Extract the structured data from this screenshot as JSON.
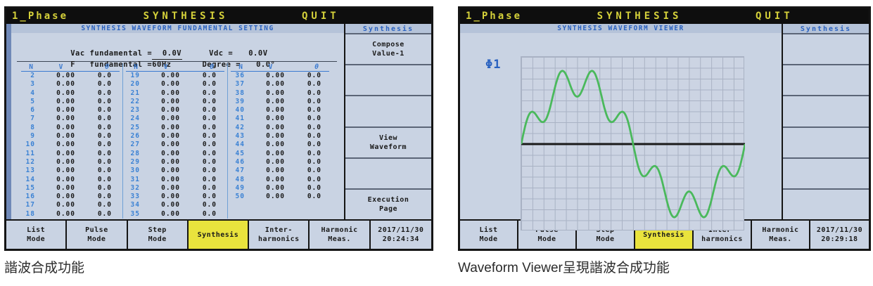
{
  "colors": {
    "screen_bg": "#c9d3e3",
    "header_bg": "#0e0e0e",
    "header_text": "#d5d13a",
    "band_bg": "#b5c3d9",
    "band_text": "#2a62c0",
    "accent_blue": "#3b7ad0",
    "active_tab_yellow": "#e9e33d",
    "grid_line": "#a9b2c4",
    "waveform_green": "#4ab95c"
  },
  "footer_tabs": [
    [
      "List",
      "Mode"
    ],
    [
      "Pulse",
      "Mode"
    ],
    [
      "Step",
      "Mode"
    ],
    [
      "Synthesis"
    ],
    [
      "Inter-",
      "harmonics"
    ],
    [
      "Harmonic",
      "Meas."
    ]
  ],
  "active_tab_index": 3,
  "captions": {
    "left": "諧波合成功能",
    "right": "Waveform Viewer呈現諧波合成功能"
  },
  "screen_left": {
    "header": {
      "phase": "1_Phase",
      "title": "SYNTHESIS",
      "quit": "QUIT"
    },
    "panel_title": "SYNTHESIS WAVEFORM FUNDAMENTAL SETTING",
    "settings": {
      "vac_label": "Vac fundamental =",
      "vac_value": "  0.0V",
      "vdc_label": "Vdc =",
      "vdc_value": "0.0V",
      "f_label": "F   fundamental =",
      "f_value": "60Hz",
      "degree_label": "Degree =",
      "degree_value": "0.0°"
    },
    "table": {
      "headers": [
        "N",
        "V",
        "θ"
      ],
      "groups": [
        {
          "rows": [
            [
              2,
              "0.00",
              "0.0"
            ],
            [
              3,
              "0.00",
              "0.0"
            ],
            [
              4,
              "0.00",
              "0.0"
            ],
            [
              5,
              "0.00",
              "0.0"
            ],
            [
              6,
              "0.00",
              "0.0"
            ],
            [
              7,
              "0.00",
              "0.0"
            ],
            [
              8,
              "0.00",
              "0.0"
            ],
            [
              9,
              "0.00",
              "0.0"
            ],
            [
              10,
              "0.00",
              "0.0"
            ],
            [
              11,
              "0.00",
              "0.0"
            ],
            [
              12,
              "0.00",
              "0.0"
            ],
            [
              13,
              "0.00",
              "0.0"
            ],
            [
              14,
              "0.00",
              "0.0"
            ],
            [
              15,
              "0.00",
              "0.0"
            ],
            [
              16,
              "0.00",
              "0.0"
            ],
            [
              17,
              "0.00",
              "0.0"
            ],
            [
              18,
              "0.00",
              "0.0"
            ]
          ]
        },
        {
          "rows": [
            [
              19,
              "0.00",
              "0.0"
            ],
            [
              20,
              "0.00",
              "0.0"
            ],
            [
              21,
              "0.00",
              "0.0"
            ],
            [
              22,
              "0.00",
              "0.0"
            ],
            [
              23,
              "0.00",
              "0.0"
            ],
            [
              24,
              "0.00",
              "0.0"
            ],
            [
              25,
              "0.00",
              "0.0"
            ],
            [
              26,
              "0.00",
              "0.0"
            ],
            [
              27,
              "0.00",
              "0.0"
            ],
            [
              28,
              "0.00",
              "0.0"
            ],
            [
              29,
              "0.00",
              "0.0"
            ],
            [
              30,
              "0.00",
              "0.0"
            ],
            [
              31,
              "0.00",
              "0.0"
            ],
            [
              32,
              "0.00",
              "0.0"
            ],
            [
              33,
              "0.00",
              "0.0"
            ],
            [
              34,
              "0.00",
              "0.0"
            ],
            [
              35,
              "0.00",
              "0.0"
            ]
          ]
        },
        {
          "rows": [
            [
              36,
              "0.00",
              "0.0"
            ],
            [
              37,
              "0.00",
              "0.0"
            ],
            [
              38,
              "0.00",
              "0.0"
            ],
            [
              39,
              "0.00",
              "0.0"
            ],
            [
              40,
              "0.00",
              "0.0"
            ],
            [
              41,
              "0.00",
              "0.0"
            ],
            [
              42,
              "0.00",
              "0.0"
            ],
            [
              43,
              "0.00",
              "0.0"
            ],
            [
              44,
              "0.00",
              "0.0"
            ],
            [
              45,
              "0.00",
              "0.0"
            ],
            [
              46,
              "0.00",
              "0.0"
            ],
            [
              47,
              "0.00",
              "0.0"
            ],
            [
              48,
              "0.00",
              "0.0"
            ],
            [
              49,
              "0.00",
              "0.0"
            ],
            [
              50,
              "0.00",
              "0.0"
            ]
          ]
        }
      ]
    },
    "sidebar": {
      "title": "Synthesis",
      "buttons": [
        [
          "Compose",
          "Value-1"
        ],
        [],
        [],
        [
          "View",
          "Waveform"
        ],
        [],
        [
          "Execution",
          "Page"
        ]
      ]
    },
    "clock": [
      "2017/11/30",
      "20:24:34"
    ]
  },
  "screen_right": {
    "header": {
      "phase": "1_Phase",
      "title": "SYNTHESIS",
      "quit": "QUIT"
    },
    "panel_title": "SYNTHESIS WAVEFORM VIEWER",
    "phase_label": "Φ1",
    "waveform": {
      "color": "#4ab95c",
      "zero_line_color": "#1a1a1a",
      "cycles": 1,
      "harmonics": [
        {
          "n": 1,
          "amp": 1.0
        },
        {
          "n": 7,
          "amp": 0.25
        }
      ]
    },
    "sidebar": {
      "title": "Synthesis",
      "buttons": [
        [],
        [],
        [],
        [],
        [],
        []
      ]
    },
    "clock": [
      "2017/11/30",
      "20:29:18"
    ]
  }
}
